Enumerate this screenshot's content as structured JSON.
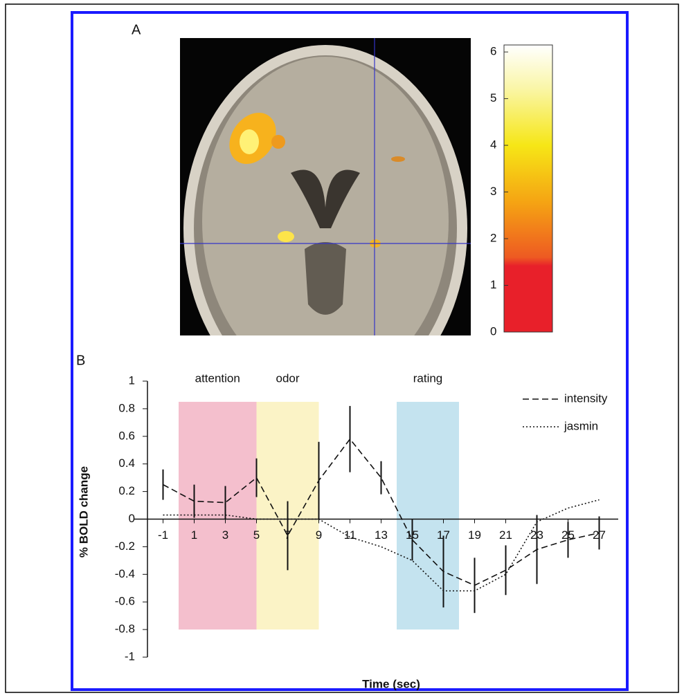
{
  "panel_a": {
    "label": "A",
    "colorbar": {
      "lim": [
        0,
        6.15
      ],
      "ticks": [
        0,
        1,
        2,
        3,
        4,
        5,
        6
      ]
    }
  },
  "chart_data": {
    "type": "line",
    "panel_label": "B",
    "x_label": "Time (sec)",
    "y_label": "% BOLD change",
    "xlim": [
      -2,
      28
    ],
    "xticks": [
      -1,
      1,
      3,
      5,
      7,
      9,
      11,
      13,
      15,
      17,
      19,
      21,
      23,
      25,
      27
    ],
    "ylim": [
      -1.05,
      1
    ],
    "yticks": [
      1,
      0.8,
      0.6,
      0.4,
      0.2,
      0,
      -0.2,
      -0.4,
      -0.6,
      -0.8,
      -1
    ],
    "regions": [
      {
        "label": "attention",
        "start": 0,
        "end": 5,
        "low": -0.8,
        "high": 0.85,
        "color": "#f4bfcd"
      },
      {
        "label": "odor",
        "start": 5,
        "end": 9,
        "low": -0.8,
        "high": 0.85,
        "color": "#fbf3c6"
      },
      {
        "label": "rating",
        "start": 14,
        "end": 18,
        "low": -0.8,
        "high": 0.85,
        "color": "#c4e3ef"
      }
    ],
    "x": [
      -1,
      1,
      3,
      5,
      7,
      9,
      11,
      13,
      15,
      17,
      19,
      21,
      23,
      25,
      27
    ],
    "series": [
      {
        "name": "intensity",
        "color": "#111",
        "dash": "9 5",
        "values": [
          0.25,
          0.13,
          0.12,
          0.3,
          -0.12,
          0.28,
          0.58,
          0.3,
          -0.15,
          -0.38,
          -0.48,
          -0.37,
          -0.22,
          -0.15,
          -0.1
        ],
        "errors": [
          0.11,
          0.12,
          0.12,
          0.14,
          0.25,
          0.28,
          0.24,
          0.12,
          0.15,
          0.26,
          0.2,
          0.18,
          0.25,
          0.13,
          0.12
        ]
      },
      {
        "name": "jasmin",
        "color": "#111",
        "dash": "2 3",
        "values": [
          0.03,
          0.03,
          0.03,
          0.0,
          0.0,
          0.0,
          -0.13,
          -0.2,
          -0.3,
          -0.52,
          -0.52,
          -0.4,
          -0.02,
          0.08,
          0.14
        ]
      }
    ]
  }
}
